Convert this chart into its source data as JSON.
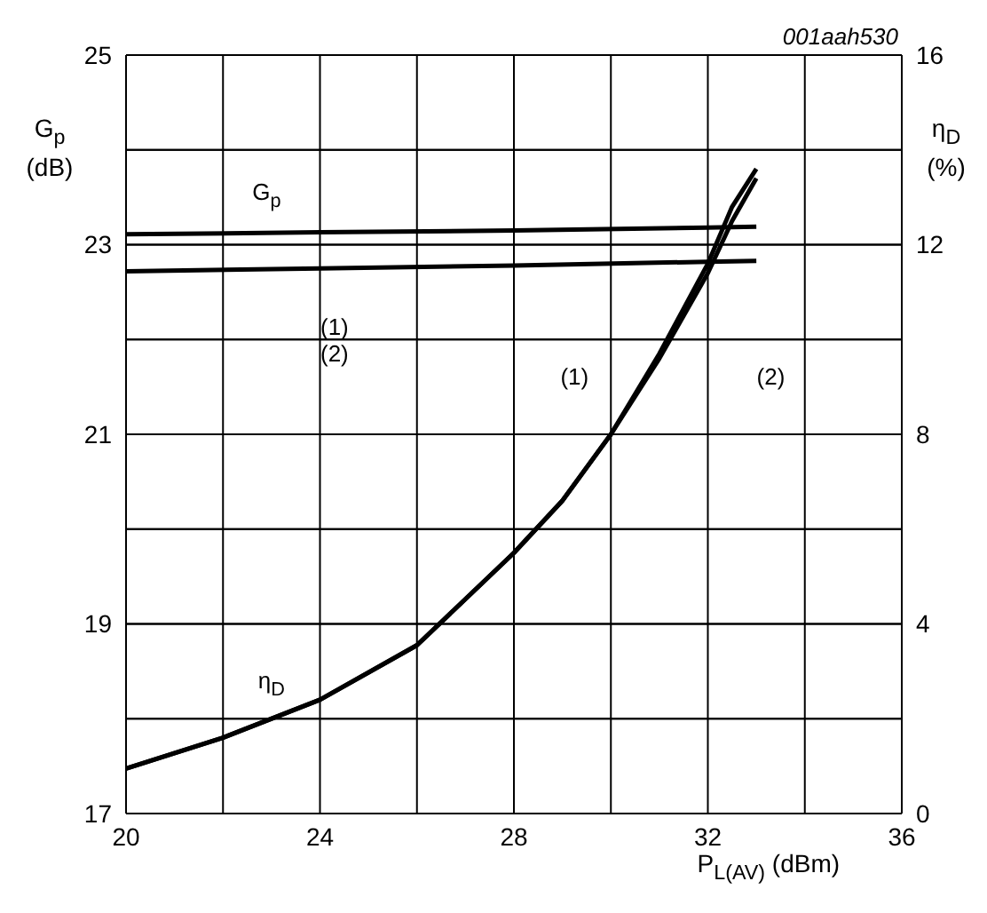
{
  "chart_data": {
    "type": "line",
    "xlabel": "P$_{L(AV)}$ (dBm)",
    "ylabel": "G$_{p}$ (dB)",
    "y2label": "η$_{D}$ (%)",
    "annotations": [
      "001aah530",
      "G$_{p}$",
      "η$_{D}$",
      "(1)",
      "(2)",
      "(1)",
      "(2)"
    ],
    "series": [
      {
        "color": "#000000",
        "x": [
          20,
          24,
          28,
          32,
          33
        ],
        "values": [
          23.11,
          23.13,
          23.15,
          23.18,
          23.19
        ]
      },
      {
        "color": "#000000",
        "x": [
          20,
          24,
          28,
          32,
          33
        ],
        "values": [
          22.72,
          22.75,
          22.78,
          22.82,
          22.83
        ]
      },
      {
        "color": "#000000",
        "axis": "y2",
        "x": [
          20,
          22,
          24,
          26,
          28,
          29,
          30,
          31,
          32,
          32.5,
          33
        ],
        "values": [
          0.95,
          1.6,
          2.4,
          3.55,
          5.5,
          6.6,
          8.0,
          9.7,
          11.6,
          12.8,
          13.6
        ]
      },
      {
        "color": "#000000",
        "axis": "y2",
        "x": [
          20,
          22,
          24,
          26,
          28,
          29,
          30,
          31,
          32,
          32.5,
          33
        ],
        "values": [
          0.95,
          1.6,
          2.4,
          3.55,
          5.5,
          6.6,
          8.0,
          9.6,
          11.4,
          12.5,
          13.4
        ]
      }
    ],
    "xlim": [
      20,
      36
    ],
    "xticks": [
      20,
      {
        "value": 22,
        "label": null
      },
      24,
      {
        "value": 26,
        "label": null
      },
      28,
      {
        "value": 30,
        "label": null
      },
      32,
      {
        "value": 34,
        "label": null
      },
      36
    ],
    "ylim": [
      17,
      25
    ],
    "yticks": [
      17,
      {
        "value": 18,
        "label": null
      },
      19,
      {
        "value": 20,
        "label": null
      },
      21,
      {
        "value": 22,
        "label": null
      },
      23,
      {
        "value": 24,
        "label": null
      },
      25
    ],
    "y2lim": [
      0,
      16
    ],
    "y2ticks": [
      0,
      {
        "value": 2,
        "label": null
      },
      4,
      {
        "value": 6,
        "label": null
      },
      8,
      {
        "value": 10,
        "label": null
      },
      12,
      {
        "value": 14,
        "label": null
      },
      16
    ],
    "grid": true,
    "legend": false,
    "marker": "none",
    "line_style": "solid"
  }
}
